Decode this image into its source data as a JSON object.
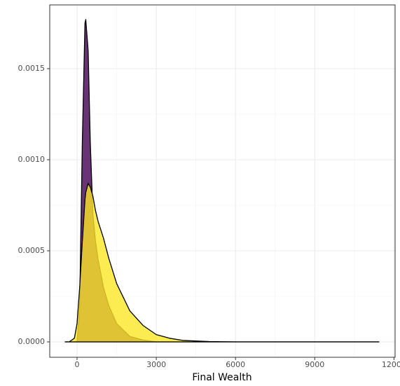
{
  "chart_data": {
    "type": "density",
    "x_label": "Final Wealth",
    "x": [
      -450,
      -300,
      -100,
      0,
      100,
      200,
      300,
      330,
      420,
      500,
      600,
      700,
      800,
      1000,
      1200,
      1500,
      2000,
      2500,
      3000,
      3500,
      4000,
      5000,
      6000,
      8000,
      11430
    ],
    "series": [
      {
        "color": "#440154",
        "values": [
          0,
          0,
          0,
          0,
          0.0002,
          0.0011,
          0.00175,
          0.00177,
          0.0016,
          0.0011,
          0.0007,
          0.00055,
          0.00045,
          0.0003,
          0.0002,
          0.0001,
          3e-05,
          1e-05,
          0,
          0,
          0,
          0,
          0,
          0,
          0
        ]
      },
      {
        "color": "#fde725",
        "values": [
          0,
          0,
          2e-05,
          0.0001,
          0.0003,
          0.00055,
          0.00078,
          0.00082,
          0.00087,
          0.00085,
          0.0008,
          0.00072,
          0.00066,
          0.00057,
          0.00046,
          0.00032,
          0.00017,
          9e-05,
          4e-05,
          2e-05,
          8e-06,
          2e-06,
          0,
          0,
          0
        ]
      }
    ],
    "xlim": [
      -1034,
      12042
    ],
    "ylim": [
      -8.46e-05,
      0.00185
    ],
    "xticks": [
      0,
      3000,
      6000,
      9000,
      12000
    ],
    "yticks": [
      {
        "value": 0,
        "label": "0.0000"
      },
      {
        "value": 0.0005,
        "label": "0.0005"
      },
      {
        "value": 0.001,
        "label": "0.0010"
      },
      {
        "value": 0.0015,
        "label": "0.0015"
      }
    ],
    "grid": true
  }
}
